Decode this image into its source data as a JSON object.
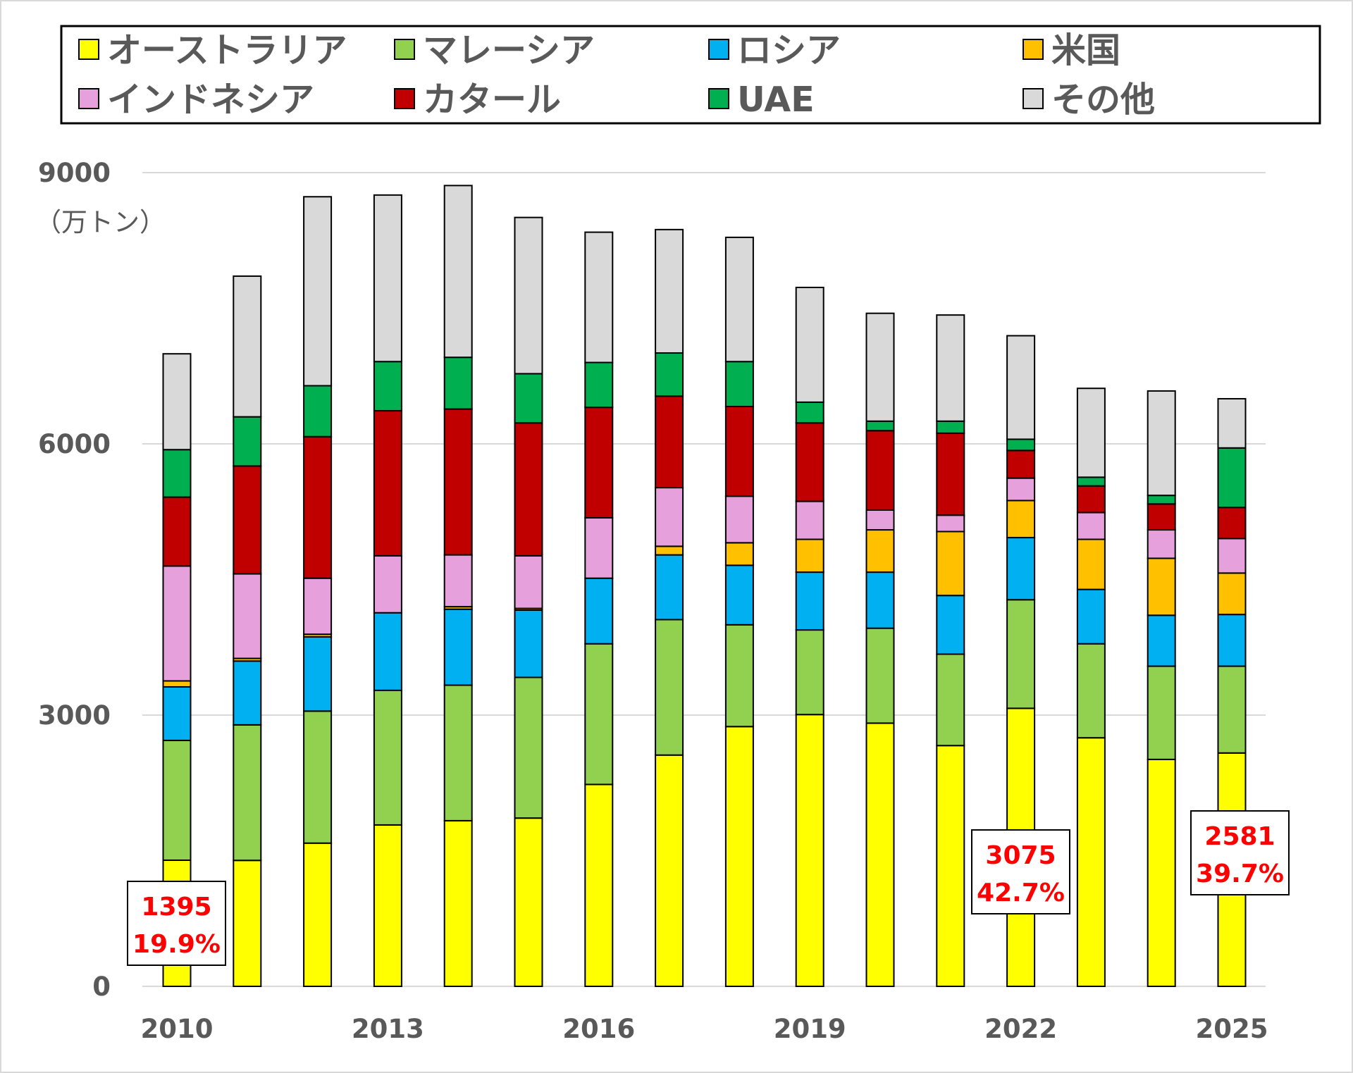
{
  "chart_data": {
    "type": "bar",
    "stacked": true,
    "unit_label": "（万トン）",
    "ylim": [
      0,
      9000
    ],
    "yticks": [
      "0",
      "3000",
      "6000",
      "9000"
    ],
    "grid": true,
    "legend_placement": "top",
    "categories": [
      "2010",
      "2011",
      "2012",
      "2013",
      "2014",
      "2015",
      "2016",
      "2017",
      "2018",
      "2019",
      "2020",
      "2021",
      "2022",
      "2023",
      "2024",
      "2025"
    ],
    "xtick_labels": [
      "2010",
      "2013",
      "2016",
      "2019",
      "2022",
      "2025"
    ],
    "series": [
      {
        "name": "オーストラリア",
        "color": "#ffff00",
        "values": [
          1395,
          1393,
          1584,
          1785,
          1832,
          1861,
          2233,
          2558,
          2873,
          3006,
          2911,
          2663,
          3075,
          2749,
          2510,
          2581
        ]
      },
      {
        "name": "マレーシア",
        "color": "#92d050",
        "values": [
          1325,
          1499,
          1460,
          1489,
          1499,
          1556,
          1556,
          1498,
          1126,
          936,
          1050,
          1011,
          1201,
          1040,
          1031,
          960
        ]
      },
      {
        "name": "ロシア",
        "color": "#00b0f0",
        "values": [
          592,
          706,
          821,
          858,
          840,
          744,
          725,
          716,
          658,
          639,
          620,
          649,
          687,
          601,
          563,
          572
        ]
      },
      {
        "name": "米国",
        "color": "#ffc000",
        "values": [
          66,
          29,
          29,
          0,
          28,
          19,
          0,
          95,
          249,
          363,
          468,
          707,
          410,
          554,
          630,
          458
        ]
      },
      {
        "name": "インドネシア",
        "color": "#e6a0dc",
        "values": [
          1270,
          935,
          620,
          630,
          573,
          582,
          668,
          649,
          515,
          420,
          219,
          181,
          248,
          296,
          315,
          382
        ]
      },
      {
        "name": "カタール",
        "color": "#c00000",
        "values": [
          763,
          1193,
          1566,
          1604,
          1613,
          1470,
          1222,
          1012,
          992,
          868,
          878,
          907,
          306,
          295,
          286,
          344
        ]
      },
      {
        "name": "UAE",
        "color": "#00b050",
        "values": [
          525,
          544,
          563,
          544,
          572,
          544,
          496,
          477,
          497,
          229,
          105,
          133,
          124,
          96,
          95,
          658
        ]
      },
      {
        "name": "その他",
        "color": "#d9d9d9",
        "values": [
          1060,
          1556,
          2090,
          1842,
          1900,
          1728,
          1441,
          1365,
          1374,
          1269,
          1193,
          1174,
          1145,
          983,
          1155,
          544
        ]
      }
    ],
    "annotations": [
      {
        "category": "2010",
        "value": "1395",
        "share": "19.9%"
      },
      {
        "category": "2022",
        "value": "3075",
        "share": "42.7%"
      },
      {
        "category": "2025",
        "value": "2581",
        "share": "39.7%"
      }
    ],
    "annotation_color": "#ff0000"
  }
}
